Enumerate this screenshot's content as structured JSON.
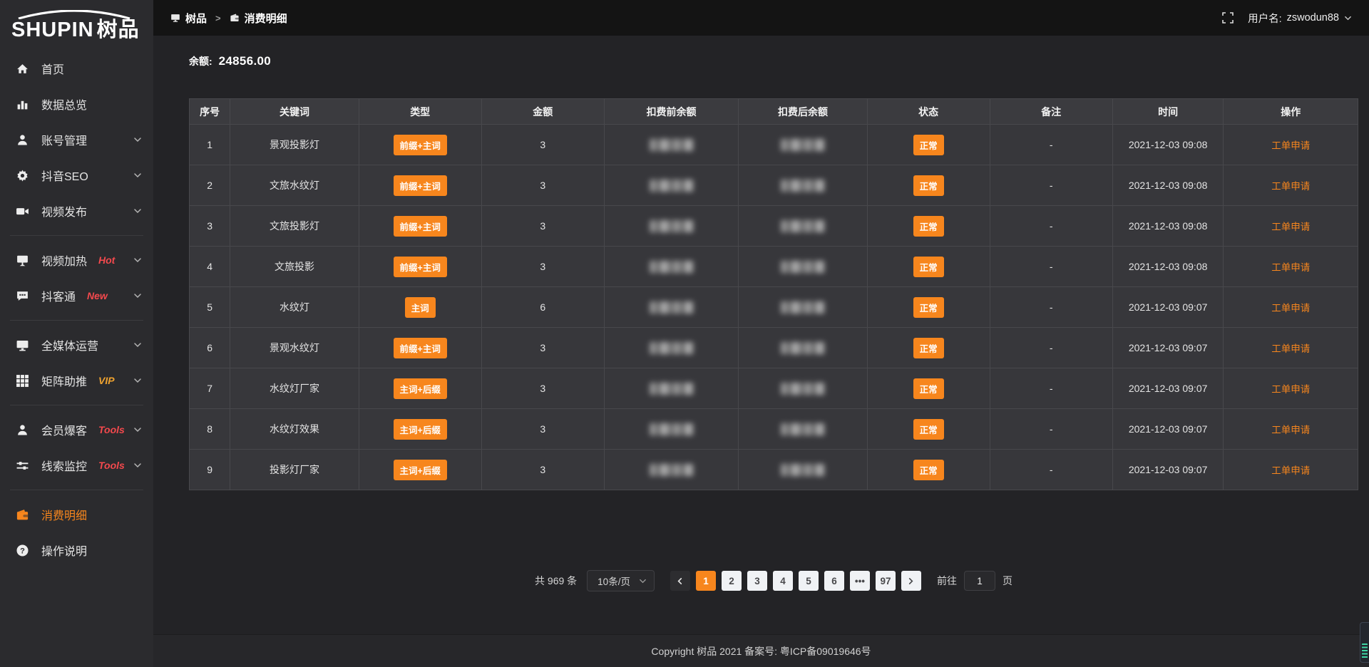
{
  "brand": {
    "en": "SHUPIN",
    "cn": "树品"
  },
  "topbar": {
    "breadcrumb": [
      {
        "id": "shupin",
        "icon": "monitor-icon",
        "label": "树品"
      },
      {
        "id": "consume-detail",
        "icon": "wallet-icon",
        "label": "消费明细"
      }
    ],
    "separator": ">",
    "user_label": "用户名:",
    "username": "zswodun88"
  },
  "sidebar": {
    "items": [
      {
        "id": "home",
        "icon": "home-icon",
        "label": "首页",
        "tag": "",
        "tag_color": "",
        "chevron": false,
        "active": false,
        "divider_after": false
      },
      {
        "id": "data-overview",
        "icon": "bar-chart-icon",
        "label": "数据总览",
        "tag": "",
        "tag_color": "",
        "chevron": false,
        "active": false,
        "divider_after": false
      },
      {
        "id": "account-manage",
        "icon": "user-icon",
        "label": "账号管理",
        "tag": "",
        "tag_color": "",
        "chevron": true,
        "active": false,
        "divider_after": false
      },
      {
        "id": "douyin-seo",
        "icon": "gear-icon",
        "label": "抖音SEO",
        "tag": "",
        "tag_color": "",
        "chevron": true,
        "active": false,
        "divider_after": false
      },
      {
        "id": "video-publish",
        "icon": "video-camera-icon",
        "label": "视频发布",
        "tag": "",
        "tag_color": "",
        "chevron": true,
        "active": false,
        "divider_after": true
      },
      {
        "id": "video-heat",
        "icon": "presentation-icon",
        "label": "视频加热",
        "tag": "Hot",
        "tag_color": "#f4494d",
        "chevron": true,
        "active": false,
        "divider_after": false
      },
      {
        "id": "douketong",
        "icon": "chat-bubble-icon",
        "label": "抖客通",
        "tag": "New",
        "tag_color": "#f4494d",
        "chevron": true,
        "active": false,
        "divider_after": true
      },
      {
        "id": "all-media",
        "icon": "monitor-icon",
        "label": "全媒体运营",
        "tag": "",
        "tag_color": "",
        "chevron": true,
        "active": false,
        "divider_after": false
      },
      {
        "id": "matrix-boost",
        "icon": "grid-icon",
        "label": "矩阵助推",
        "tag": "VIP",
        "tag_color": "#f0a32f",
        "chevron": true,
        "active": false,
        "divider_after": true
      },
      {
        "id": "member-burst",
        "icon": "member-icon",
        "label": "会员爆客",
        "tag": "Tools",
        "tag_color": "#f4494d",
        "chevron": true,
        "active": false,
        "divider_after": false
      },
      {
        "id": "clue-monitor",
        "icon": "sliders-icon",
        "label": "线索监控",
        "tag": "Tools",
        "tag_color": "#f4494d",
        "chevron": true,
        "active": false,
        "divider_after": true
      },
      {
        "id": "consume-detail",
        "icon": "wallet-icon",
        "label": "消费明细",
        "tag": "",
        "tag_color": "",
        "chevron": false,
        "active": true,
        "divider_after": false
      },
      {
        "id": "operation-guide",
        "icon": "question-icon",
        "label": "操作说明",
        "tag": "",
        "tag_color": "",
        "chevron": false,
        "active": false,
        "divider_after": false
      }
    ]
  },
  "balance": {
    "label": "余额:",
    "value": "24856.00"
  },
  "table": {
    "headers": [
      "序号",
      "关键词",
      "类型",
      "金额",
      "扣费前余额",
      "扣费后余额",
      "状态",
      "备注",
      "时间",
      "操作"
    ],
    "rows": [
      {
        "index": "1",
        "keyword": "景观投影灯",
        "type": "前缀+主词",
        "amount": "3",
        "status": "正常",
        "remark": "-",
        "time": "2021-12-03 09:08",
        "action": "工单申请"
      },
      {
        "index": "2",
        "keyword": "文旅水纹灯",
        "type": "前缀+主词",
        "amount": "3",
        "status": "正常",
        "remark": "-",
        "time": "2021-12-03 09:08",
        "action": "工单申请"
      },
      {
        "index": "3",
        "keyword": "文旅投影灯",
        "type": "前缀+主词",
        "amount": "3",
        "status": "正常",
        "remark": "-",
        "time": "2021-12-03 09:08",
        "action": "工单申请"
      },
      {
        "index": "4",
        "keyword": "文旅投影",
        "type": "前缀+主词",
        "amount": "3",
        "status": "正常",
        "remark": "-",
        "time": "2021-12-03 09:08",
        "action": "工单申请"
      },
      {
        "index": "5",
        "keyword": "水纹灯",
        "type": "主词",
        "amount": "6",
        "status": "正常",
        "remark": "-",
        "time": "2021-12-03 09:07",
        "action": "工单申请"
      },
      {
        "index": "6",
        "keyword": "景观水纹灯",
        "type": "前缀+主词",
        "amount": "3",
        "status": "正常",
        "remark": "-",
        "time": "2021-12-03 09:07",
        "action": "工单申请"
      },
      {
        "index": "7",
        "keyword": "水纹灯厂家",
        "type": "主词+后缀",
        "amount": "3",
        "status": "正常",
        "remark": "-",
        "time": "2021-12-03 09:07",
        "action": "工单申请"
      },
      {
        "index": "8",
        "keyword": "水纹灯效果",
        "type": "主词+后缀",
        "amount": "3",
        "status": "正常",
        "remark": "-",
        "time": "2021-12-03 09:07",
        "action": "工单申请"
      },
      {
        "index": "9",
        "keyword": "投影灯厂家",
        "type": "主词+后缀",
        "amount": "3",
        "status": "正常",
        "remark": "-",
        "time": "2021-12-03 09:07",
        "action": "工单申请"
      }
    ]
  },
  "pagination": {
    "total_label": "共 969 条",
    "page_size_label": "10条/页",
    "pages": [
      "1",
      "2",
      "3",
      "4",
      "5",
      "6",
      "•••",
      "97"
    ],
    "active_page": "1",
    "goto_label": "前往",
    "goto_value": "1",
    "goto_suffix": "页"
  },
  "footer": {
    "copyright": "Copyright 树品 2021 备案号: 粤ICP备09019646号"
  },
  "colors": {
    "accent_orange": "#f7861d",
    "tag_red": "#f4494d",
    "tag_vip": "#f0a32f",
    "sidebar_bg": "#2b2b2e",
    "topbar_bg": "#141414",
    "page_bg": "#232326",
    "row_bg": "#37373b"
  }
}
